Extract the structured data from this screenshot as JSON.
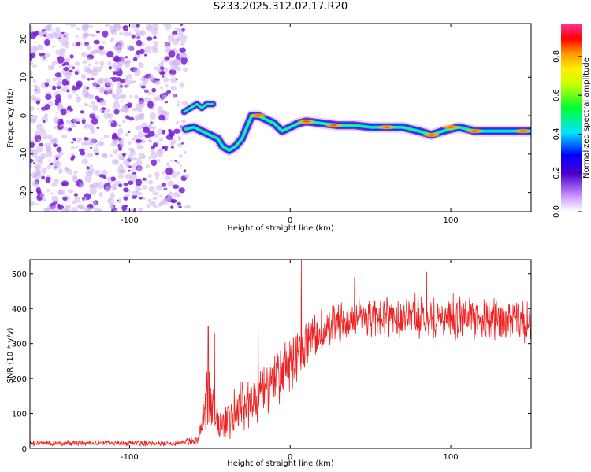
{
  "title": "S233.2025.312.02.17.R20",
  "colors": {
    "snr_line": "#ee2222",
    "spec_dots": "#7a1fd6",
    "spec_noise": "#cdb2f0",
    "axis": "#000000"
  },
  "chart_data": [
    {
      "type": "heatmap",
      "name": "spectrogram",
      "xlabel": "Height of straight line (km)",
      "ylabel": "Frequency (Hz)",
      "xlim": [
        -162,
        150
      ],
      "ylim": [
        -25,
        24
      ],
      "xticks": [
        -100,
        0,
        100
      ],
      "xtick_labels": [
        "-100",
        "0",
        "100"
      ],
      "yticks": [
        -20,
        -10,
        0,
        10,
        20
      ],
      "ytick_labels": [
        "-20",
        "-10",
        "0",
        "10",
        "20"
      ],
      "noise_region_x": [
        -162,
        -65
      ],
      "ridge": [
        {
          "x": -65,
          "y": -3.5
        },
        {
          "x": -60,
          "y": -3
        },
        {
          "x": -55,
          "y": -4
        },
        {
          "x": -50,
          "y": -5
        },
        {
          "x": -45,
          "y": -6
        },
        {
          "x": -42,
          "y": -8
        },
        {
          "x": -38,
          "y": -9
        },
        {
          "x": -34,
          "y": -8
        },
        {
          "x": -30,
          "y": -6
        },
        {
          "x": -27,
          "y": -3
        },
        {
          "x": -24,
          "y": 0
        },
        {
          "x": -20,
          "y": 0
        },
        {
          "x": -15,
          "y": -1
        },
        {
          "x": -10,
          "y": -2
        },
        {
          "x": -5,
          "y": -4
        },
        {
          "x": 0,
          "y": -3
        },
        {
          "x": 5,
          "y": -2
        },
        {
          "x": 10,
          "y": -1.5
        },
        {
          "x": 20,
          "y": -2
        },
        {
          "x": 30,
          "y": -2.5
        },
        {
          "x": 40,
          "y": -2.5
        },
        {
          "x": 50,
          "y": -3
        },
        {
          "x": 60,
          "y": -3
        },
        {
          "x": 70,
          "y": -3
        },
        {
          "x": 80,
          "y": -4
        },
        {
          "x": 88,
          "y": -5
        },
        {
          "x": 95,
          "y": -4
        },
        {
          "x": 105,
          "y": -3
        },
        {
          "x": 115,
          "y": -4
        },
        {
          "x": 125,
          "y": -4
        },
        {
          "x": 135,
          "y": -4
        },
        {
          "x": 150,
          "y": -4
        }
      ],
      "upper_branch": [
        {
          "x": -66,
          "y": 1
        },
        {
          "x": -62,
          "y": 2
        },
        {
          "x": -58,
          "y": 3
        },
        {
          "x": -55,
          "y": 2
        },
        {
          "x": -52,
          "y": 3
        },
        {
          "x": -48,
          "y": 3
        }
      ],
      "hot_spots": [
        {
          "x": -20,
          "y": 0
        },
        {
          "x": 10,
          "y": -1.5
        },
        {
          "x": 27,
          "y": -2.5
        },
        {
          "x": 60,
          "y": -3
        },
        {
          "x": 88,
          "y": -5
        },
        {
          "x": 100,
          "y": -3
        },
        {
          "x": 115,
          "y": -4
        },
        {
          "x": 145,
          "y": -4
        }
      ],
      "colorbar": {
        "label": "Normalized spectral amplitude",
        "range": [
          0,
          0.97
        ],
        "ticks": [
          0,
          0.2,
          0.4,
          0.6,
          0.8
        ],
        "tick_labels": [
          "0.0",
          "0.2",
          "0.4",
          "0.6",
          "0.8"
        ]
      }
    },
    {
      "type": "line",
      "name": "snr",
      "xlabel": "Height of straight line (km)",
      "ylabel": "SNR (10 * v/v)",
      "xlim": [
        -162,
        150
      ],
      "ylim": [
        0,
        540
      ],
      "xticks": [
        -100,
        0,
        100
      ],
      "xtick_labels": [
        "-100",
        "0",
        "100"
      ],
      "yticks": [
        0,
        100,
        200,
        300,
        400,
        500
      ],
      "ytick_labels": [
        "0",
        "100",
        "200",
        "300",
        "400",
        "500"
      ],
      "series": [
        {
          "name": "SNR",
          "envelope": [
            {
              "x": -162,
              "base": 15,
              "amp": 10
            },
            {
              "x": -70,
              "base": 15,
              "amp": 10
            },
            {
              "x": -57,
              "base": 25,
              "amp": 15
            },
            {
              "x": -52,
              "base": 150,
              "amp": 110
            },
            {
              "x": -45,
              "base": 70,
              "amp": 70
            },
            {
              "x": -30,
              "base": 120,
              "amp": 90
            },
            {
              "x": -15,
              "base": 160,
              "amp": 100
            },
            {
              "x": 0,
              "base": 240,
              "amp": 90
            },
            {
              "x": 15,
              "base": 320,
              "amp": 80
            },
            {
              "x": 30,
              "base": 360,
              "amp": 70
            },
            {
              "x": 50,
              "base": 380,
              "amp": 70
            },
            {
              "x": 100,
              "base": 375,
              "amp": 75
            },
            {
              "x": 150,
              "base": 360,
              "amp": 70
            }
          ],
          "peaks": [
            {
              "x": -51,
              "y": 350
            },
            {
              "x": -47,
              "y": 330
            },
            {
              "x": -20,
              "y": 360
            },
            {
              "x": 7,
              "y": 540
            },
            {
              "x": 40,
              "y": 490
            },
            {
              "x": 85,
              "y": 505
            }
          ]
        }
      ]
    }
  ]
}
